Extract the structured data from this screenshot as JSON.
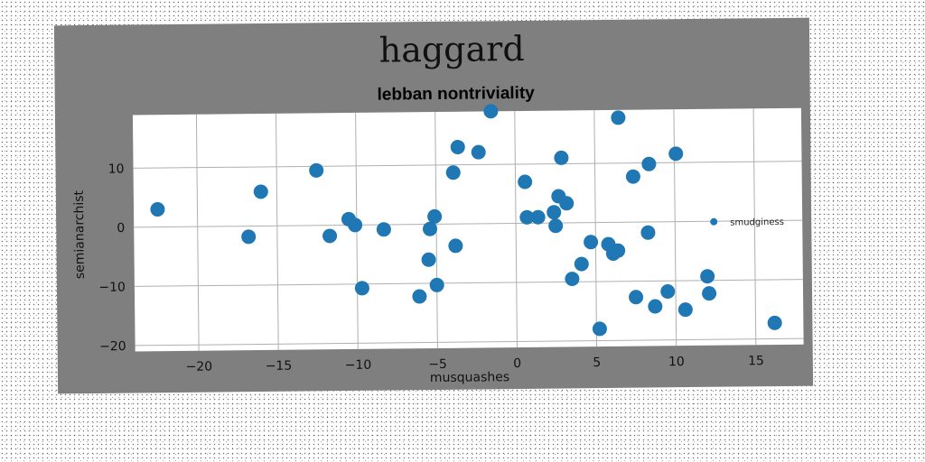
{
  "suptitle": "haggard",
  "colors": {
    "marker": "#1f77b4",
    "panel": "#7f7f7f",
    "plot_bg": "#ffffff",
    "grid": "#b0b0b0"
  },
  "chart_data": {
    "type": "scatter",
    "title": "lebban nontriviality",
    "xlabel": "musquashes",
    "ylabel": "semianarchist",
    "xlim": [
      -24,
      18
    ],
    "ylim": [
      -21,
      19
    ],
    "xticks": [
      -20,
      -15,
      -10,
      -5,
      0,
      5,
      10,
      15
    ],
    "yticks": [
      -20,
      -10,
      0,
      10
    ],
    "grid": true,
    "legend_position": "right",
    "series": [
      {
        "name": "smudginess",
        "points": [
          [
            -22.5,
            3
          ],
          [
            -16.8,
            -1.8
          ],
          [
            -16,
            5.8
          ],
          [
            -12.5,
            9.3
          ],
          [
            -11.7,
            -1.8
          ],
          [
            -10.5,
            1
          ],
          [
            -10.1,
            0
          ],
          [
            -9.7,
            -10.7
          ],
          [
            -8.3,
            -0.8
          ],
          [
            -6.1,
            -12.2
          ],
          [
            -5.5,
            -6
          ],
          [
            -5.4,
            -0.8
          ],
          [
            -5.1,
            1.3
          ],
          [
            -5,
            -10.3
          ],
          [
            -3.8,
            -3.7
          ],
          [
            -3.9,
            8.7
          ],
          [
            -3.6,
            13
          ],
          [
            -2.3,
            12.1
          ],
          [
            -1.5,
            19
          ],
          [
            0.6,
            7
          ],
          [
            0.7,
            1
          ],
          [
            1.4,
            1
          ],
          [
            2.4,
            1.8
          ],
          [
            2.5,
            -0.5
          ],
          [
            2.7,
            4.5
          ],
          [
            2.9,
            11
          ],
          [
            3.2,
            3.3
          ],
          [
            3.5,
            -9.5
          ],
          [
            4.1,
            -7
          ],
          [
            4.7,
            -3.3
          ],
          [
            5.2,
            -18
          ],
          [
            5.8,
            -3.7
          ],
          [
            6.1,
            -5.3
          ],
          [
            6.4,
            -4.8
          ],
          [
            6.5,
            17.7
          ],
          [
            7.4,
            7.7
          ],
          [
            7.5,
            -12.7
          ],
          [
            8.3,
            -1.8
          ],
          [
            8.4,
            9.8
          ],
          [
            8.7,
            -14.3
          ],
          [
            9.5,
            -11.8
          ],
          [
            10.1,
            11.5
          ],
          [
            10.6,
            -14.9
          ],
          [
            12,
            -9.3
          ],
          [
            12.1,
            -12.2
          ],
          [
            16.2,
            -17.3
          ]
        ]
      }
    ]
  }
}
